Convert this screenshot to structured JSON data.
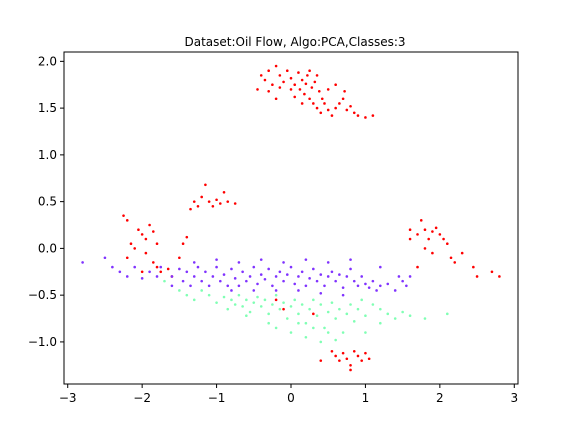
{
  "chart_data": {
    "type": "scatter",
    "title": "Dataset:Oil Flow, Algo:PCA,Classes:3",
    "xlabel": "",
    "ylabel": "",
    "xlim": [
      -3.05,
      3.05
    ],
    "ylim": [
      -1.45,
      2.1
    ],
    "xticks": [
      -3,
      -2,
      -1,
      0,
      1,
      2,
      3
    ],
    "yticks": [
      -1.0,
      -0.5,
      0.0,
      0.5,
      1.0,
      1.5,
      2.0
    ],
    "xtick_labels": [
      "−3",
      "−2",
      "−1",
      "0",
      "1",
      "2",
      "3"
    ],
    "ytick_labels": [
      "−1.0",
      "−0.5",
      "0.0",
      "0.5",
      "1.0",
      "1.5",
      "2.0"
    ],
    "grid": false,
    "legend": "none",
    "series": [
      {
        "color": "#ff0000",
        "points": [
          [
            -0.4,
            1.85
          ],
          [
            -0.35,
            1.8
          ],
          [
            -0.3,
            1.9
          ],
          [
            -0.25,
            1.75
          ],
          [
            -0.2,
            1.95
          ],
          [
            -0.15,
            1.85
          ],
          [
            -0.1,
            1.78
          ],
          [
            -0.05,
            1.9
          ],
          [
            0.0,
            1.82
          ],
          [
            0.05,
            1.75
          ],
          [
            0.1,
            1.88
          ],
          [
            0.12,
            1.7
          ],
          [
            0.15,
            1.8
          ],
          [
            0.18,
            1.65
          ],
          [
            0.2,
            1.76
          ],
          [
            0.22,
            1.85
          ],
          [
            0.25,
            1.6
          ],
          [
            0.28,
            1.72
          ],
          [
            0.3,
            1.55
          ],
          [
            0.32,
            1.78
          ],
          [
            0.35,
            1.5
          ],
          [
            0.38,
            1.68
          ],
          [
            0.4,
            1.45
          ],
          [
            0.42,
            1.6
          ],
          [
            0.45,
            1.55
          ],
          [
            0.5,
            1.48
          ],
          [
            0.55,
            1.42
          ],
          [
            0.6,
            1.5
          ],
          [
            0.65,
            1.55
          ],
          [
            0.7,
            1.6
          ],
          [
            0.75,
            1.48
          ],
          [
            0.8,
            1.52
          ],
          [
            0.85,
            1.45
          ],
          [
            0.9,
            1.42
          ],
          [
            1.0,
            1.4
          ],
          [
            1.1,
            1.42
          ],
          [
            -0.45,
            1.7
          ],
          [
            -0.3,
            1.68
          ],
          [
            -0.15,
            1.72
          ],
          [
            0.05,
            1.62
          ],
          [
            0.25,
            1.9
          ],
          [
            0.35,
            1.85
          ],
          [
            0.5,
            1.7
          ],
          [
            0.6,
            1.75
          ],
          [
            0.72,
            1.68
          ],
          [
            -0.2,
            1.6
          ],
          [
            0.0,
            1.7
          ],
          [
            0.15,
            1.55
          ],
          [
            -1.3,
            0.5
          ],
          [
            -1.25,
            0.45
          ],
          [
            -1.2,
            0.55
          ],
          [
            -1.15,
            0.68
          ],
          [
            -1.1,
            0.5
          ],
          [
            -1.05,
            0.45
          ],
          [
            -1.0,
            0.52
          ],
          [
            -0.95,
            0.48
          ],
          [
            -0.9,
            0.6
          ],
          [
            -0.85,
            0.5
          ],
          [
            -0.75,
            0.48
          ],
          [
            -1.35,
            0.42
          ],
          [
            -2.25,
            0.35
          ],
          [
            -2.2,
            0.3
          ],
          [
            -2.15,
            0.05
          ],
          [
            -2.1,
            0.0
          ],
          [
            -2.05,
            0.2
          ],
          [
            -2.0,
            0.15
          ],
          [
            -1.95,
            0.1
          ],
          [
            -1.9,
            0.25
          ],
          [
            -1.85,
            0.18
          ],
          [
            -1.8,
            0.05
          ],
          [
            -1.95,
            -0.05
          ],
          [
            -1.85,
            -0.15
          ],
          [
            -1.8,
            -0.2
          ],
          [
            -1.75,
            -0.25
          ],
          [
            -1.65,
            -0.22
          ],
          [
            -1.5,
            -0.1
          ],
          [
            -1.45,
            0.05
          ],
          [
            -1.4,
            0.12
          ],
          [
            -1.6,
            -0.3
          ],
          [
            -2.0,
            -0.25
          ],
          [
            -2.2,
            -0.1
          ],
          [
            1.6,
            0.2
          ],
          [
            1.7,
            0.15
          ],
          [
            1.75,
            0.3
          ],
          [
            1.8,
            0.2
          ],
          [
            1.85,
            0.1
          ],
          [
            1.9,
            0.18
          ],
          [
            1.95,
            0.22
          ],
          [
            2.0,
            0.15
          ],
          [
            2.05,
            0.1
          ],
          [
            2.1,
            0.05
          ],
          [
            1.8,
            0.0
          ],
          [
            1.9,
            -0.05
          ],
          [
            2.15,
            -0.1
          ],
          [
            2.2,
            -0.15
          ],
          [
            2.3,
            -0.05
          ],
          [
            2.5,
            -0.3
          ],
          [
            2.7,
            -0.25
          ],
          [
            2.8,
            -0.3
          ],
          [
            2.45,
            -0.2
          ],
          [
            1.7,
            -0.2
          ],
          [
            1.6,
            0.1
          ],
          [
            0.55,
            -1.1
          ],
          [
            0.6,
            -1.15
          ],
          [
            0.65,
            -1.2
          ],
          [
            0.7,
            -1.12
          ],
          [
            0.75,
            -1.18
          ],
          [
            0.8,
            -1.25
          ],
          [
            0.85,
            -1.1
          ],
          [
            0.9,
            -1.15
          ],
          [
            0.95,
            -1.2
          ],
          [
            1.0,
            -1.12
          ],
          [
            1.05,
            -1.18
          ],
          [
            0.4,
            -1.2
          ],
          [
            0.8,
            -1.3
          ],
          [
            0.3,
            -0.7
          ],
          [
            -0.1,
            -0.65
          ],
          [
            -0.2,
            -0.55
          ]
        ]
      },
      {
        "color": "#8033ff",
        "points": [
          [
            -2.8,
            -0.15
          ],
          [
            -2.5,
            -0.1
          ],
          [
            -2.4,
            -0.2
          ],
          [
            -2.3,
            -0.25
          ],
          [
            -2.2,
            -0.3
          ],
          [
            -2.1,
            -0.2
          ],
          [
            -1.9,
            -0.25
          ],
          [
            -1.75,
            -0.2
          ],
          [
            -1.6,
            -0.3
          ],
          [
            -1.5,
            -0.22
          ],
          [
            -1.45,
            -0.35
          ],
          [
            -1.4,
            -0.25
          ],
          [
            -1.35,
            -0.4
          ],
          [
            -1.3,
            -0.3
          ],
          [
            -1.25,
            -0.2
          ],
          [
            -1.2,
            -0.35
          ],
          [
            -1.15,
            -0.25
          ],
          [
            -1.1,
            -0.4
          ],
          [
            -1.05,
            -0.3
          ],
          [
            -1.0,
            -0.2
          ],
          [
            -0.95,
            -0.35
          ],
          [
            -0.9,
            -0.28
          ],
          [
            -0.85,
            -0.4
          ],
          [
            -0.8,
            -0.22
          ],
          [
            -0.75,
            -0.32
          ],
          [
            -0.7,
            -0.4
          ],
          [
            -0.65,
            -0.25
          ],
          [
            -0.6,
            -0.35
          ],
          [
            -0.55,
            -0.3
          ],
          [
            -0.5,
            -0.2
          ],
          [
            -0.45,
            -0.38
          ],
          [
            -0.4,
            -0.28
          ],
          [
            -0.35,
            -0.33
          ],
          [
            -0.3,
            -0.22
          ],
          [
            -0.25,
            -0.4
          ],
          [
            -0.2,
            -0.3
          ],
          [
            -0.15,
            -0.25
          ],
          [
            -0.1,
            -0.35
          ],
          [
            -0.05,
            -0.28
          ],
          [
            0.0,
            -0.2
          ],
          [
            0.05,
            -0.38
          ],
          [
            0.1,
            -0.3
          ],
          [
            0.15,
            -0.25
          ],
          [
            0.2,
            -0.4
          ],
          [
            0.25,
            -0.32
          ],
          [
            0.3,
            -0.22
          ],
          [
            0.35,
            -0.35
          ],
          [
            0.4,
            -0.28
          ],
          [
            0.45,
            -0.4
          ],
          [
            0.5,
            -0.3
          ],
          [
            0.55,
            -0.25
          ],
          [
            0.6,
            -0.35
          ],
          [
            0.65,
            -0.28
          ],
          [
            0.7,
            -0.42
          ],
          [
            0.75,
            -0.3
          ],
          [
            0.8,
            -0.22
          ],
          [
            0.85,
            -0.35
          ],
          [
            0.9,
            -0.4
          ],
          [
            0.95,
            -0.3
          ],
          [
            1.0,
            -0.38
          ],
          [
            1.05,
            -0.42
          ],
          [
            1.1,
            -0.35
          ],
          [
            1.15,
            -0.45
          ],
          [
            1.2,
            -0.4
          ],
          [
            1.3,
            -0.38
          ],
          [
            1.4,
            -0.45
          ],
          [
            1.5,
            -0.35
          ],
          [
            1.6,
            -0.3
          ],
          [
            1.55,
            -0.4
          ],
          [
            1.45,
            -0.3
          ],
          [
            -1.3,
            -0.15
          ],
          [
            -1.0,
            -0.12
          ],
          [
            -0.7,
            -0.15
          ],
          [
            -0.4,
            -0.12
          ],
          [
            -0.1,
            -0.15
          ],
          [
            0.2,
            -0.12
          ],
          [
            0.5,
            -0.15
          ],
          [
            0.8,
            -0.12
          ],
          [
            -0.8,
            -0.45
          ],
          [
            -0.5,
            -0.45
          ],
          [
            -0.2,
            -0.45
          ],
          [
            0.1,
            -0.45
          ],
          [
            0.4,
            -0.48
          ],
          [
            0.7,
            -0.5
          ],
          [
            -1.6,
            -0.4
          ],
          [
            -1.8,
            -0.3
          ],
          [
            -2.0,
            -0.32
          ],
          [
            1.2,
            -0.2
          ]
        ]
      },
      {
        "color": "#80ffb4",
        "points": [
          [
            -1.7,
            -0.35
          ],
          [
            -1.5,
            -0.45
          ],
          [
            -1.4,
            -0.5
          ],
          [
            -1.3,
            -0.55
          ],
          [
            -1.2,
            -0.45
          ],
          [
            -1.1,
            -0.5
          ],
          [
            -1.0,
            -0.58
          ],
          [
            -0.9,
            -0.52
          ],
          [
            -0.85,
            -0.65
          ],
          [
            -0.8,
            -0.55
          ],
          [
            -0.75,
            -0.6
          ],
          [
            -0.7,
            -0.5
          ],
          [
            -0.65,
            -0.62
          ],
          [
            -0.6,
            -0.55
          ],
          [
            -0.55,
            -0.68
          ],
          [
            -0.5,
            -0.58
          ],
          [
            -0.45,
            -0.52
          ],
          [
            -0.4,
            -0.62
          ],
          [
            -0.35,
            -0.55
          ],
          [
            -0.3,
            -0.7
          ],
          [
            -0.25,
            -0.6
          ],
          [
            -0.2,
            -0.5
          ],
          [
            -0.15,
            -0.65
          ],
          [
            -0.1,
            -0.58
          ],
          [
            -0.05,
            -0.75
          ],
          [
            0.0,
            -0.62
          ],
          [
            0.05,
            -0.55
          ],
          [
            0.1,
            -0.7
          ],
          [
            0.15,
            -0.6
          ],
          [
            0.2,
            -0.8
          ],
          [
            0.25,
            -0.65
          ],
          [
            0.3,
            -0.55
          ],
          [
            0.35,
            -0.72
          ],
          [
            0.4,
            -0.6
          ],
          [
            0.45,
            -0.85
          ],
          [
            0.5,
            -0.68
          ],
          [
            0.55,
            -0.58
          ],
          [
            0.6,
            -0.75
          ],
          [
            0.65,
            -0.65
          ],
          [
            0.7,
            -0.9
          ],
          [
            0.75,
            -0.7
          ],
          [
            0.8,
            -0.6
          ],
          [
            0.85,
            -0.78
          ],
          [
            0.9,
            -0.65
          ],
          [
            0.95,
            -0.55
          ],
          [
            1.0,
            -0.72
          ],
          [
            1.1,
            -0.6
          ],
          [
            1.2,
            -0.8
          ],
          [
            1.3,
            -0.7
          ],
          [
            1.4,
            -0.75
          ],
          [
            1.5,
            -0.68
          ],
          [
            1.6,
            -0.72
          ],
          [
            1.8,
            -0.75
          ],
          [
            2.1,
            -0.7
          ],
          [
            -0.2,
            -0.85
          ],
          [
            0.0,
            -0.9
          ],
          [
            0.2,
            -0.95
          ],
          [
            0.4,
            -1.0
          ],
          [
            0.6,
            -0.98
          ],
          [
            0.5,
            -0.9
          ],
          [
            0.3,
            -0.85
          ],
          [
            0.1,
            -0.8
          ],
          [
            -0.3,
            -0.8
          ],
          [
            1.0,
            -0.9
          ],
          [
            1.2,
            -0.65
          ],
          [
            -0.6,
            -0.72
          ]
        ]
      }
    ]
  }
}
